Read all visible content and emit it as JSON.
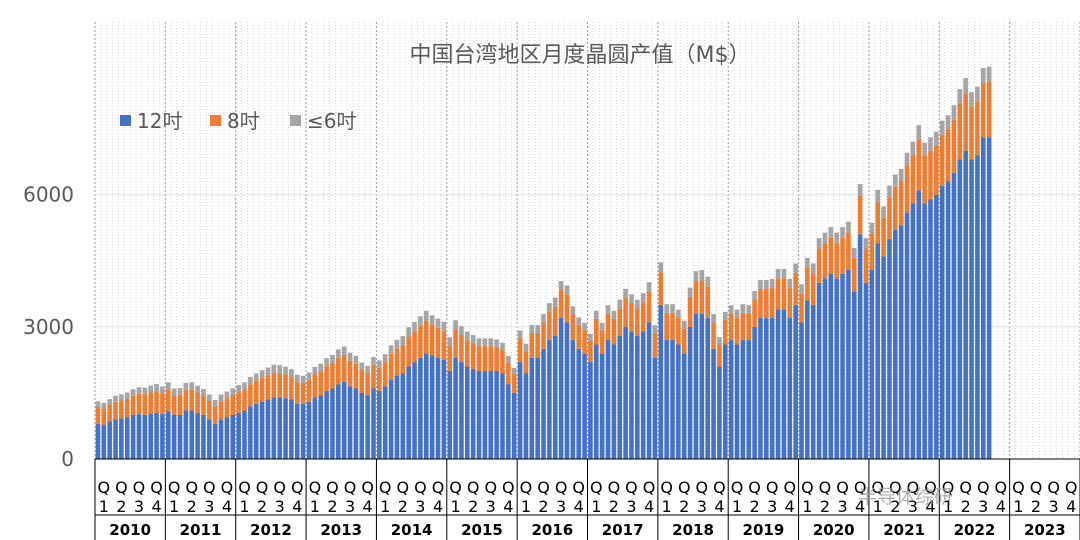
{
  "chart_data": {
    "type": "bar",
    "stacked": true,
    "title": "中国台湾地区月度晶圆产值（M$）",
    "xlabel": "",
    "ylabel": "",
    "ylim": [
      0,
      8000
    ],
    "yticks": [
      0,
      3000,
      6000
    ],
    "grid": true,
    "legend_position": "top-left",
    "colors": {
      "12吋": "#4472C4",
      "8吋": "#ED7D31",
      "≤6吋": "#A5A5A5"
    },
    "years": [
      "2010",
      "2011",
      "2012",
      "2013",
      "2014",
      "2015",
      "2016",
      "2017",
      "2018",
      "2019",
      "2020",
      "2021",
      "2022",
      "2023"
    ],
    "quarter_labels": [
      "Q1",
      "Q2",
      "Q3",
      "Q4"
    ],
    "series": [
      {
        "name": "12吋",
        "values": [
          800,
          780,
          850,
          900,
          920,
          950,
          1000,
          1020,
          1000,
          1030,
          1050,
          1020,
          1080,
          1000,
          1000,
          1100,
          1100,
          1050,
          1000,
          900,
          800,
          900,
          950,
          1000,
          1050,
          1100,
          1200,
          1250,
          1300,
          1350,
          1400,
          1400,
          1380,
          1350,
          1250,
          1250,
          1300,
          1400,
          1450,
          1550,
          1600,
          1700,
          1750,
          1650,
          1600,
          1500,
          1450,
          1600,
          1550,
          1650,
          1800,
          1900,
          1950,
          2100,
          2200,
          2300,
          2400,
          2350,
          2300,
          2250,
          2000,
          2300,
          2200,
          2100,
          2050,
          2000,
          2000,
          2000,
          2000,
          1950,
          1700,
          1500,
          2200,
          1950,
          2300,
          2300,
          2500,
          2700,
          2800,
          3200,
          3100,
          2700,
          2500,
          2400,
          2200,
          2600,
          2400,
          2700,
          2600,
          2800,
          3000,
          2900,
          2800,
          2900,
          3100,
          2300,
          3500,
          2700,
          2700,
          2600,
          2400,
          3000,
          3300,
          3300,
          3200,
          2500,
          2100,
          2600,
          2700,
          2600,
          2700,
          2700,
          3000,
          3200,
          3200,
          3200,
          3400,
          3400,
          3200,
          3500,
          3100,
          3600,
          3500,
          4000,
          4100,
          4200,
          4100,
          4200,
          4300,
          3800,
          5100,
          4000,
          4300,
          4900,
          4600,
          5000,
          5200,
          5300,
          5600,
          5800,
          6100,
          5800,
          5900,
          6000,
          6200,
          6300,
          6500,
          6800,
          7000,
          6800,
          6900,
          7300,
          7300
        ],
        "markers": [
          "Q",
          "1",
          "2",
          "3",
          "4"
        ]
      },
      {
        "name": "8吋",
        "values": [
          380,
          370,
          380,
          400,
          410,
          420,
          440,
          460,
          470,
          480,
          490,
          470,
          500,
          450,
          460,
          470,
          480,
          460,
          440,
          420,
          400,
          420,
          430,
          450,
          470,
          480,
          500,
          520,
          540,
          550,
          560,
          550,
          540,
          520,
          500,
          480,
          500,
          520,
          540,
          560,
          580,
          600,
          610,
          580,
          560,
          520,
          500,
          540,
          520,
          550,
          590,
          610,
          640,
          680,
          700,
          720,
          740,
          700,
          680,
          660,
          580,
          650,
          620,
          600,
          580,
          560,
          560,
          560,
          540,
          520,
          480,
          420,
          540,
          500,
          560,
          560,
          600,
          640,
          660,
          640,
          640,
          580,
          540,
          520,
          480,
          580,
          520,
          600,
          580,
          620,
          660,
          640,
          620,
          660,
          700,
          560,
          740,
          620,
          620,
          600,
          560,
          680,
          740,
          760,
          720,
          600,
          500,
          560,
          600,
          600,
          620,
          600,
          620,
          660,
          660,
          680,
          700,
          700,
          680,
          720,
          660,
          740,
          720,
          780,
          800,
          820,
          800,
          820,
          840,
          760,
          880,
          780,
          820,
          940,
          880,
          940,
          980,
          1000,
          1060,
          1100,
          1160,
          1080,
          1100,
          1120,
          1160,
          1180,
          1200,
          1260,
          1300,
          1200,
          1220,
          1240,
          1260
        ],
        "markers": []
      },
      {
        "name": "≤6吋",
        "values": [
          130,
          125,
          130,
          135,
          140,
          140,
          145,
          150,
          150,
          155,
          160,
          155,
          160,
          150,
          150,
          155,
          160,
          155,
          150,
          145,
          140,
          145,
          150,
          155,
          160,
          160,
          165,
          170,
          175,
          175,
          180,
          180,
          175,
          170,
          165,
          160,
          165,
          170,
          175,
          180,
          185,
          190,
          195,
          185,
          180,
          170,
          165,
          175,
          170,
          180,
          190,
          195,
          200,
          210,
          215,
          220,
          225,
          215,
          210,
          205,
          185,
          200,
          195,
          190,
          185,
          180,
          180,
          180,
          175,
          170,
          160,
          145,
          175,
          165,
          180,
          180,
          190,
          200,
          205,
          200,
          200,
          185,
          175,
          170,
          160,
          185,
          170,
          190,
          185,
          195,
          205,
          200,
          195,
          205,
          215,
          180,
          225,
          195,
          195,
          190,
          180,
          210,
          225,
          230,
          220,
          190,
          165,
          180,
          190,
          190,
          195,
          190,
          195,
          205,
          205,
          210,
          215,
          215,
          210,
          220,
          205,
          225,
          220,
          235,
          240,
          245,
          240,
          245,
          250,
          230,
          260,
          235,
          245,
          270,
          255,
          270,
          280,
          285,
          295,
          305,
          320,
          300,
          305,
          310,
          320,
          325,
          330,
          340,
          350,
          330,
          335,
          340,
          345
        ]
      }
    ]
  },
  "watermark": "半导体综研"
}
